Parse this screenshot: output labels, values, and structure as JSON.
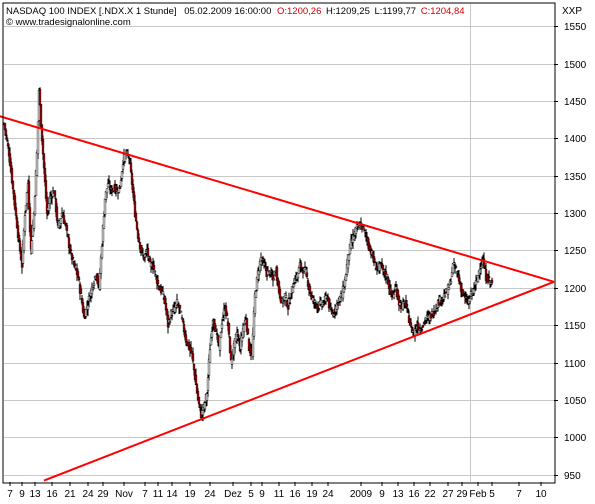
{
  "header": {
    "instrument": "NASDAQ 100 INDEX [.NDX.X  1 Stunde]",
    "datetime": "05.02.2009 16:00:00",
    "open": "O:1200,26",
    "high": "H:1209,25",
    "low": "L:1199,77",
    "close": "C:1204,84",
    "source": "© www.tradesignalonline.com",
    "exchange": "XXP",
    "colors": {
      "text": "#000000",
      "open": "#d40000",
      "close": "#d40000"
    }
  },
  "chart_data": {
    "type": "candlestick",
    "title": "NASDAQ 100 INDEX [.NDX.X  1 Stunde]",
    "xlabel": "",
    "ylabel": "",
    "ylim": [
      940,
      1580
    ],
    "y_ticks": [
      950,
      1000,
      1050,
      1100,
      1150,
      1200,
      1250,
      1300,
      1350,
      1400,
      1450,
      1500,
      1550
    ],
    "x_tick_labels": [
      "7",
      "9",
      "13",
      "16",
      "21",
      "24",
      "29",
      "Nov",
      "7",
      "11",
      "14",
      "19",
      "24",
      "Dez",
      "5",
      "9",
      "11",
      "16",
      "19",
      "24",
      "2009",
      "9",
      "13",
      "16",
      "22",
      "27",
      "29",
      "Feb",
      "5",
      "7",
      "10"
    ],
    "grid": true,
    "legend": "none",
    "price_path": [
      [
        0,
        1420
      ],
      [
        5,
        1380
      ],
      [
        10,
        1320
      ],
      [
        15,
        1260
      ],
      [
        18,
        1230
      ],
      [
        21,
        1300
      ],
      [
        24,
        1340
      ],
      [
        27,
        1250
      ],
      [
        30,
        1300
      ],
      [
        33,
        1380
      ],
      [
        35,
        1465
      ],
      [
        37,
        1420
      ],
      [
        40,
        1360
      ],
      [
        43,
        1300
      ],
      [
        46,
        1320
      ],
      [
        50,
        1330
      ],
      [
        54,
        1280
      ],
      [
        58,
        1300
      ],
      [
        62,
        1280
      ],
      [
        66,
        1250
      ],
      [
        70,
        1230
      ],
      [
        74,
        1215
      ],
      [
        78,
        1180
      ],
      [
        80,
        1160
      ],
      [
        84,
        1180
      ],
      [
        88,
        1200
      ],
      [
        92,
        1220
      ],
      [
        95,
        1200
      ],
      [
        98,
        1260
      ],
      [
        101,
        1320
      ],
      [
        104,
        1340
      ],
      [
        107,
        1330
      ],
      [
        110,
        1335
      ],
      [
        113,
        1330
      ],
      [
        116,
        1335
      ],
      [
        119,
        1370
      ],
      [
        122,
        1380
      ],
      [
        125,
        1375
      ],
      [
        128,
        1340
      ],
      [
        131,
        1300
      ],
      [
        134,
        1270
      ],
      [
        137,
        1250
      ],
      [
        140,
        1240
      ],
      [
        143,
        1250
      ],
      [
        146,
        1230
      ],
      [
        149,
        1230
      ],
      [
        152,
        1215
      ],
      [
        155,
        1200
      ],
      [
        158,
        1195
      ],
      [
        161,
        1180
      ],
      [
        164,
        1150
      ],
      [
        167,
        1165
      ],
      [
        170,
        1170
      ],
      [
        173,
        1180
      ],
      [
        176,
        1170
      ],
      [
        179,
        1150
      ],
      [
        182,
        1130
      ],
      [
        185,
        1120
      ],
      [
        188,
        1110
      ],
      [
        191,
        1080
      ],
      [
        194,
        1050
      ],
      [
        197,
        1030
      ],
      [
        200,
        1040
      ],
      [
        203,
        1060
      ],
      [
        206,
        1120
      ],
      [
        209,
        1160
      ],
      [
        212,
        1140
      ],
      [
        215,
        1120
      ],
      [
        218,
        1155
      ],
      [
        221,
        1175
      ],
      [
        224,
        1150
      ],
      [
        227,
        1100
      ],
      [
        230,
        1120
      ],
      [
        233,
        1140
      ],
      [
        236,
        1120
      ],
      [
        239,
        1145
      ],
      [
        242,
        1160
      ],
      [
        245,
        1120
      ],
      [
        248,
        1110
      ],
      [
        251,
        1190
      ],
      [
        254,
        1220
      ],
      [
        257,
        1240
      ],
      [
        260,
        1230
      ],
      [
        263,
        1220
      ],
      [
        266,
        1220
      ],
      [
        269,
        1210
      ],
      [
        272,
        1225
      ],
      [
        275,
        1195
      ],
      [
        278,
        1180
      ],
      [
        281,
        1190
      ],
      [
        284,
        1175
      ],
      [
        287,
        1190
      ],
      [
        290,
        1210
      ],
      [
        293,
        1215
      ],
      [
        296,
        1230
      ],
      [
        299,
        1225
      ],
      [
        302,
        1220
      ],
      [
        305,
        1200
      ],
      [
        308,
        1185
      ],
      [
        311,
        1180
      ],
      [
        314,
        1175
      ],
      [
        317,
        1178
      ],
      [
        320,
        1180
      ],
      [
        323,
        1190
      ],
      [
        326,
        1170
      ],
      [
        329,
        1165
      ],
      [
        332,
        1175
      ],
      [
        335,
        1185
      ],
      [
        338,
        1190
      ],
      [
        341,
        1210
      ],
      [
        344,
        1240
      ],
      [
        347,
        1260
      ],
      [
        350,
        1270
      ],
      [
        353,
        1280
      ],
      [
        356,
        1285
      ],
      [
        359,
        1280
      ],
      [
        362,
        1270
      ],
      [
        365,
        1255
      ],
      [
        368,
        1245
      ],
      [
        371,
        1230
      ],
      [
        374,
        1225
      ],
      [
        377,
        1230
      ],
      [
        380,
        1220
      ],
      [
        383,
        1215
      ],
      [
        386,
        1195
      ],
      [
        389,
        1190
      ],
      [
        392,
        1200
      ],
      [
        395,
        1180
      ],
      [
        398,
        1175
      ],
      [
        401,
        1180
      ],
      [
        404,
        1165
      ],
      [
        407,
        1145
      ],
      [
        410,
        1140
      ],
      [
        413,
        1150
      ],
      [
        416,
        1145
      ],
      [
        419,
        1150
      ],
      [
        422,
        1160
      ],
      [
        425,
        1160
      ],
      [
        428,
        1165
      ],
      [
        431,
        1170
      ],
      [
        434,
        1180
      ],
      [
        437,
        1185
      ],
      [
        440,
        1190
      ],
      [
        443,
        1195
      ],
      [
        446,
        1205
      ],
      [
        449,
        1230
      ],
      [
        452,
        1225
      ],
      [
        455,
        1210
      ],
      [
        458,
        1195
      ],
      [
        461,
        1185
      ],
      [
        464,
        1180
      ],
      [
        467,
        1190
      ],
      [
        470,
        1200
      ],
      [
        473,
        1210
      ],
      [
        476,
        1230
      ],
      [
        479,
        1235
      ],
      [
        482,
        1215
      ],
      [
        485,
        1210
      ],
      [
        488,
        1205
      ]
    ],
    "trendlines": [
      {
        "x0": -10,
        "y0": 1432,
        "x1": 550,
        "y1": 1208,
        "color": "#ff0000"
      },
      {
        "x0": 40,
        "y0": 942,
        "x1": 550,
        "y1": 1208,
        "color": "#ff0000"
      }
    ]
  }
}
